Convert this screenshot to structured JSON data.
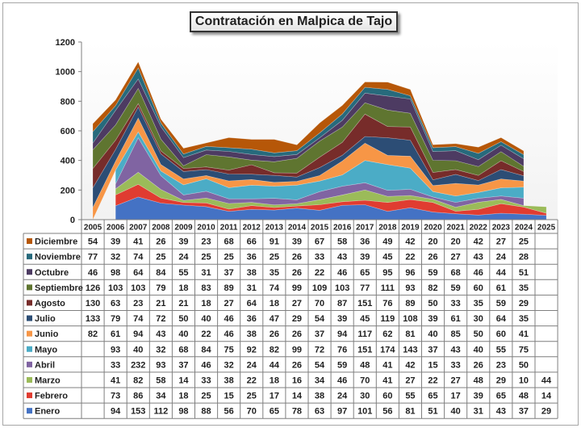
{
  "chart_data": {
    "type": "area",
    "stacked": true,
    "title": "Contratación en Malpica de Tajo",
    "ylim": [
      0,
      1200
    ],
    "yticks": [
      0,
      200,
      400,
      600,
      800,
      1000,
      1200
    ],
    "grid": false,
    "legend": "data-table-left",
    "categories": [
      "2005",
      "2006",
      "2007",
      "2008",
      "2009",
      "2010",
      "2011",
      "2012",
      "2013",
      "2014",
      "2015",
      "2016",
      "2017",
      "2018",
      "2019",
      "2020",
      "2021",
      "2022",
      "2023",
      "2024",
      "2025"
    ],
    "series": [
      {
        "name": "Enero",
        "color": "#4472c4",
        "values": [
          null,
          94,
          153,
          112,
          98,
          88,
          56,
          70,
          65,
          78,
          63,
          97,
          101,
          56,
          81,
          51,
          40,
          31,
          43,
          37,
          29
        ]
      },
      {
        "name": "Febrero",
        "color": "#e03c31",
        "values": [
          null,
          73,
          86,
          34,
          18,
          25,
          15,
          25,
          17,
          14,
          38,
          24,
          30,
          60,
          55,
          65,
          17,
          39,
          65,
          48,
          14
        ]
      },
      {
        "name": "Marzo",
        "color": "#9bbb59",
        "values": [
          null,
          41,
          82,
          58,
          14,
          33,
          38,
          22,
          18,
          16,
          34,
          46,
          70,
          41,
          27,
          22,
          27,
          48,
          29,
          10,
          44
        ]
      },
      {
        "name": "Abril",
        "color": "#8064a2",
        "values": [
          null,
          33,
          232,
          93,
          37,
          46,
          32,
          24,
          44,
          26,
          54,
          59,
          48,
          41,
          42,
          15,
          33,
          26,
          23,
          50,
          null
        ]
      },
      {
        "name": "Mayo",
        "color": "#4bacc6",
        "values": [
          null,
          93,
          40,
          32,
          68,
          84,
          75,
          92,
          82,
          99,
          72,
          76,
          151,
          174,
          143,
          37,
          43,
          40,
          55,
          75,
          null
        ]
      },
      {
        "name": "Junio",
        "color": "#f79646",
        "values": [
          82,
          61,
          94,
          43,
          40,
          22,
          46,
          38,
          26,
          26,
          37,
          94,
          117,
          62,
          81,
          40,
          85,
          50,
          60,
          41,
          null
        ]
      },
      {
        "name": "Julio",
        "color": "#2c4d75",
        "values": [
          133,
          79,
          74,
          72,
          50,
          40,
          46,
          36,
          47,
          29,
          54,
          39,
          45,
          119,
          108,
          39,
          61,
          30,
          64,
          35,
          null
        ]
      },
      {
        "name": "Agosto",
        "color": "#772c2a",
        "values": [
          130,
          63,
          23,
          21,
          21,
          18,
          27,
          64,
          18,
          27,
          70,
          87,
          151,
          76,
          89,
          50,
          33,
          35,
          59,
          29,
          null
        ]
      },
      {
        "name": "Septiembre",
        "color": "#5f7530",
        "values": [
          126,
          103,
          103,
          79,
          18,
          83,
          89,
          31,
          74,
          99,
          109,
          103,
          77,
          111,
          93,
          82,
          59,
          60,
          61,
          35,
          null
        ]
      },
      {
        "name": "Octubre",
        "color": "#4d3b62",
        "values": [
          46,
          98,
          64,
          84,
          55,
          31,
          37,
          38,
          35,
          26,
          22,
          46,
          65,
          95,
          96,
          59,
          68,
          46,
          44,
          51,
          null
        ]
      },
      {
        "name": "Noviembre",
        "color": "#276a7c",
        "values": [
          77,
          32,
          74,
          25,
          24,
          25,
          25,
          36,
          25,
          26,
          33,
          43,
          39,
          45,
          22,
          26,
          27,
          43,
          24,
          28,
          null
        ]
      },
      {
        "name": "Diciembre",
        "color": "#b65708",
        "values": [
          54,
          39,
          41,
          26,
          39,
          23,
          68,
          66,
          91,
          39,
          67,
          58,
          36,
          49,
          42,
          20,
          20,
          42,
          27,
          25,
          null
        ]
      }
    ]
  }
}
